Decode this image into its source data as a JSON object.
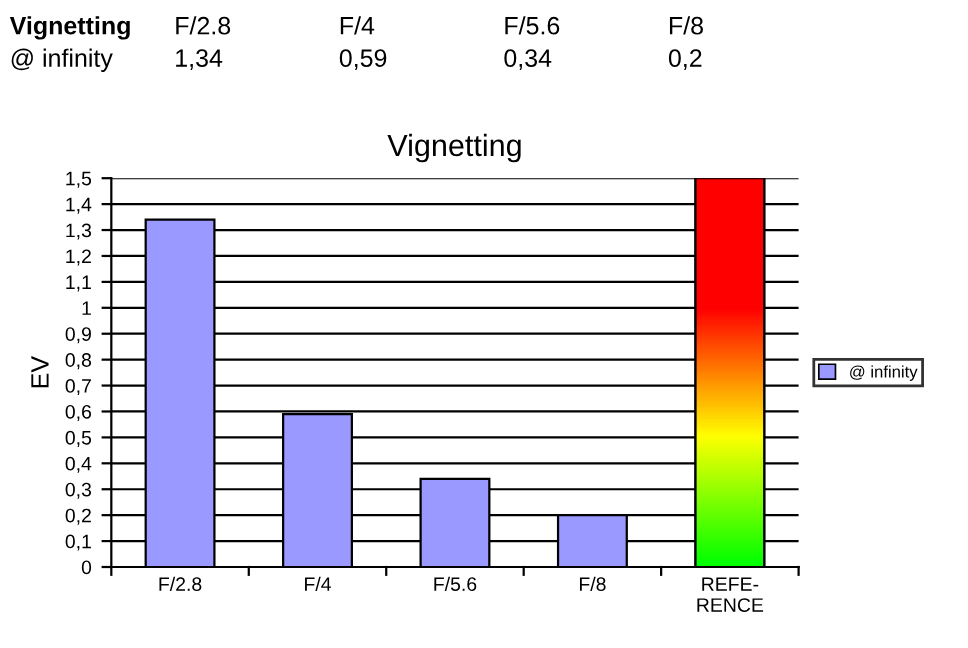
{
  "chart_data": {
    "type": "bar",
    "title": "Vignetting",
    "ylabel": "EV",
    "categories": [
      "F/2.8",
      "F/4",
      "F/5.6",
      "F/8",
      "REFE-\nRENCE"
    ],
    "series": [
      {
        "name": "@ infinity",
        "color": "#9999ff",
        "colors": [
          "#9999ff",
          "#9999ff",
          "#9999ff",
          "#9999ff",
          "#ff0000"
        ],
        "values": [
          1.34,
          0.59,
          0.34,
          0.2,
          1.5
        ]
      }
    ],
    "annotations": [
      "1,34",
      "0,59",
      "0,34",
      "0,2"
    ],
    "ylim": [
      0,
      1.5
    ],
    "yticks": [
      0,
      {
        "value": 0.1,
        "label": "0,1"
      },
      {
        "value": 0.2,
        "label": "0,2"
      },
      {
        "value": 0.3,
        "label": "0,3"
      },
      {
        "value": 0.4,
        "label": "0,4"
      },
      {
        "value": 0.5,
        "label": "0,5"
      },
      {
        "value": 0.6,
        "label": "0,6"
      },
      {
        "value": 0.7,
        "label": "0,7"
      },
      {
        "value": 0.8,
        "label": "0,8"
      },
      {
        "value": 0.9,
        "label": "0,9"
      },
      1,
      {
        "value": 1.1,
        "label": "1,1"
      },
      {
        "value": 1.2,
        "label": "1,2"
      },
      {
        "value": 1.3,
        "label": "1,3"
      },
      {
        "value": 1.4,
        "label": "1,4"
      },
      {
        "value": 1.5,
        "label": "1,5"
      }
    ],
    "grid": "y",
    "legend": "right"
  }
}
